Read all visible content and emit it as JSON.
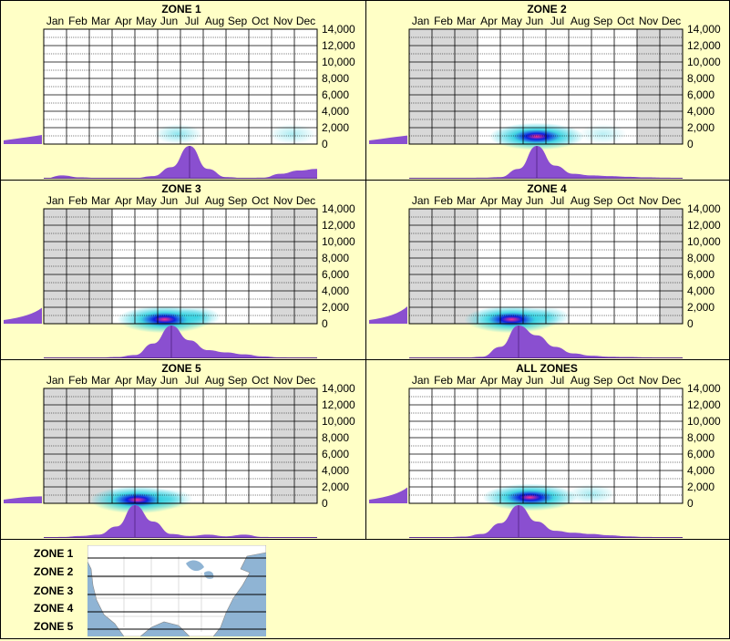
{
  "months": [
    "Jan",
    "Feb",
    "Mar",
    "Apr",
    "May",
    "Jun",
    "Jul",
    "Aug",
    "Sep",
    "Oct",
    "Nov",
    "Dec"
  ],
  "elevation_ticks": [
    "14,000",
    "12,000",
    "10,000",
    "8,000",
    "6,000",
    "4,000",
    "2,000",
    "0"
  ],
  "colors": {
    "background": "#ffffc6",
    "distribution": "#8a4fd0",
    "shade": "#d8d8d8",
    "heat_low": "#2ed0e0",
    "heat_mid": "#0a20e0",
    "heat_high": "#ff3090"
  },
  "chart_data": [
    {
      "type": "heatmap",
      "title": "ZONE 1",
      "ylim": [
        0,
        14000
      ],
      "inactive_months": [],
      "hotspots": [
        {
          "month": 6.4,
          "elevation": 1000,
          "intensity": 0.25
        },
        {
          "month": 11.4,
          "elevation": 1000,
          "intensity": 0.18
        }
      ],
      "month_distribution": [
        0,
        0.1,
        0.04,
        0.02,
        0.01,
        0.02,
        0.08,
        0.35,
        1.0,
        0.3,
        0.05,
        0.02,
        0.03,
        0.15,
        0.25,
        0.3
      ],
      "elevation_distribution": [
        0.02,
        0.05,
        0.08,
        0.12,
        0.2
      ]
    },
    {
      "type": "heatmap",
      "title": "ZONE 2",
      "ylim": [
        0,
        14000
      ],
      "inactive_months": [
        1,
        2,
        3,
        11,
        12
      ],
      "hotspots": [
        {
          "month": 6.1,
          "elevation": 700,
          "intensity": 1.0
        },
        {
          "month": 9.0,
          "elevation": 1000,
          "intensity": 0.15
        }
      ],
      "month_distribution": [
        0,
        0.02,
        0.02,
        0.02,
        0.03,
        0.05,
        0.3,
        1.0,
        0.4,
        0.15,
        0.1,
        0.08,
        0.06,
        0.04,
        0.03,
        0.02
      ],
      "elevation_distribution": [
        0.1,
        0.12,
        0.14,
        0.16,
        0.18
      ]
    },
    {
      "type": "heatmap",
      "title": "ZONE 3",
      "ylim": [
        0,
        14000
      ],
      "inactive_months": [
        1,
        2,
        3,
        11,
        12
      ],
      "hotspots": [
        {
          "month": 5.8,
          "elevation": 300,
          "intensity": 1.0
        },
        {
          "month": 7.2,
          "elevation": 600,
          "intensity": 0.4
        }
      ],
      "month_distribution": [
        0,
        0.01,
        0.01,
        0.02,
        0.04,
        0.1,
        0.45,
        1.0,
        0.55,
        0.25,
        0.18,
        0.12,
        0.06,
        0.03,
        0.02,
        0.01
      ],
      "elevation_distribution": [
        0.05,
        0.08,
        0.12,
        0.22,
        0.45
      ]
    },
    {
      "type": "heatmap",
      "title": "ZONE 4",
      "ylim": [
        0,
        14000
      ],
      "inactive_months": [
        1,
        2,
        3,
        12
      ],
      "hotspots": [
        {
          "month": 5.0,
          "elevation": 300,
          "intensity": 1.0
        },
        {
          "month": 6.5,
          "elevation": 600,
          "intensity": 0.35
        }
      ],
      "month_distribution": [
        0,
        0.01,
        0.01,
        0.02,
        0.05,
        0.35,
        1.0,
        0.7,
        0.35,
        0.15,
        0.08,
        0.05,
        0.04,
        0.03,
        0.02,
        0.01
      ],
      "elevation_distribution": [
        0.05,
        0.08,
        0.12,
        0.25,
        0.5
      ]
    },
    {
      "type": "heatmap",
      "title": "ZONE 5",
      "ylim": [
        0,
        14000
      ],
      "inactive_months": [
        1,
        2,
        3,
        11,
        12
      ],
      "hotspots": [
        {
          "month": 4.6,
          "elevation": 200,
          "intensity": 0.85
        },
        {
          "month": 6.0,
          "elevation": 300,
          "intensity": 0.3
        }
      ],
      "month_distribution": [
        0,
        0.03,
        0.06,
        0.1,
        0.35,
        1.0,
        0.5,
        0.12,
        0.06,
        0.1,
        0.05,
        0.1,
        0.03,
        0.02,
        0.02,
        0.01
      ],
      "elevation_distribution": [
        0.03,
        0.04,
        0.05,
        0.06,
        0.12
      ]
    },
    {
      "type": "heatmap",
      "title": "ALL ZONES",
      "ylim": [
        0,
        14000
      ],
      "inactive_months": [],
      "hotspots": [
        {
          "month": 5.8,
          "elevation": 500,
          "intensity": 1.0
        },
        {
          "month": 8.5,
          "elevation": 900,
          "intensity": 0.2
        }
      ],
      "month_distribution": [
        0,
        0.01,
        0.02,
        0.04,
        0.12,
        0.45,
        1.0,
        0.5,
        0.22,
        0.16,
        0.12,
        0.08,
        0.05,
        0.03,
        0.02,
        0.01
      ],
      "elevation_distribution": [
        0.05,
        0.08,
        0.12,
        0.25,
        0.45
      ]
    }
  ],
  "legend": {
    "zones": [
      "ZONE 1",
      "ZONE 2",
      "ZONE 3",
      "ZONE 4",
      "ZONE 5"
    ]
  }
}
